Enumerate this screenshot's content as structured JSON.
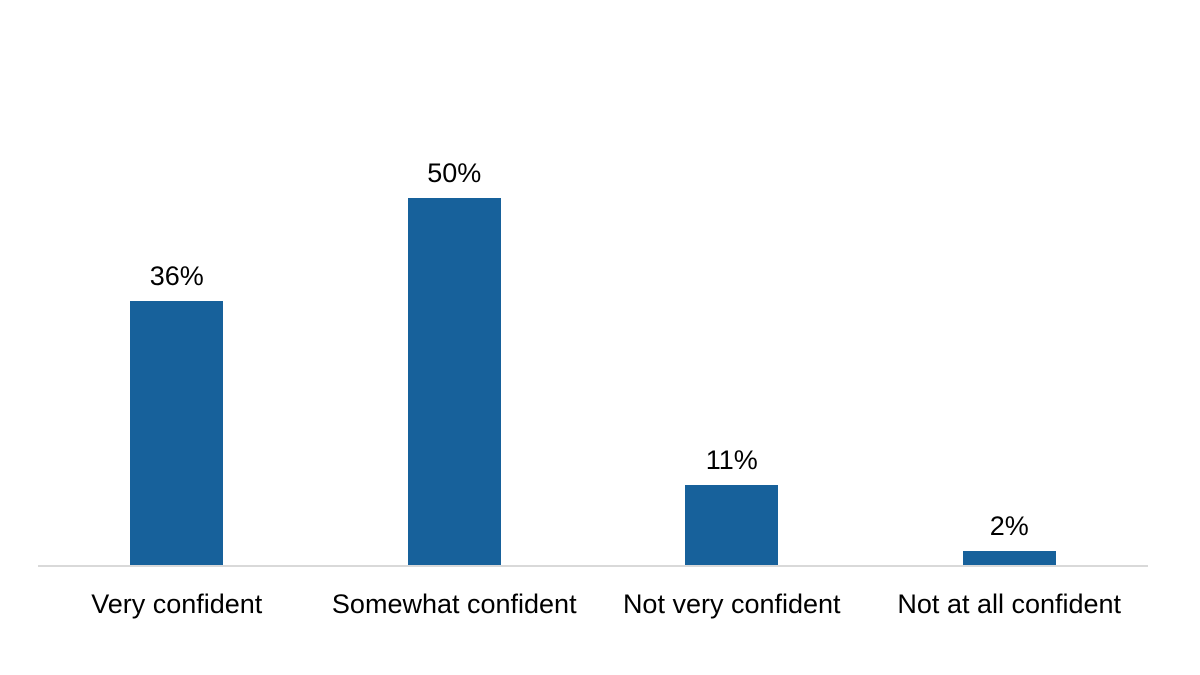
{
  "chart_data": {
    "type": "bar",
    "title": "",
    "xlabel": "",
    "ylabel": "",
    "categories": [
      "Very confident",
      "Somewhat confident",
      "Not very confident",
      "Not at all confident"
    ],
    "values": [
      36,
      50,
      11,
      2
    ],
    "value_labels": [
      "36%",
      "50%",
      "11%",
      "2%"
    ],
    "ylim": [
      0,
      77
    ],
    "grid": false,
    "legend": false,
    "bar_color": "#17619B",
    "axis_line_color": "#D9D9D9",
    "text_color": "#000000",
    "background_color": "#FFFFFF"
  }
}
